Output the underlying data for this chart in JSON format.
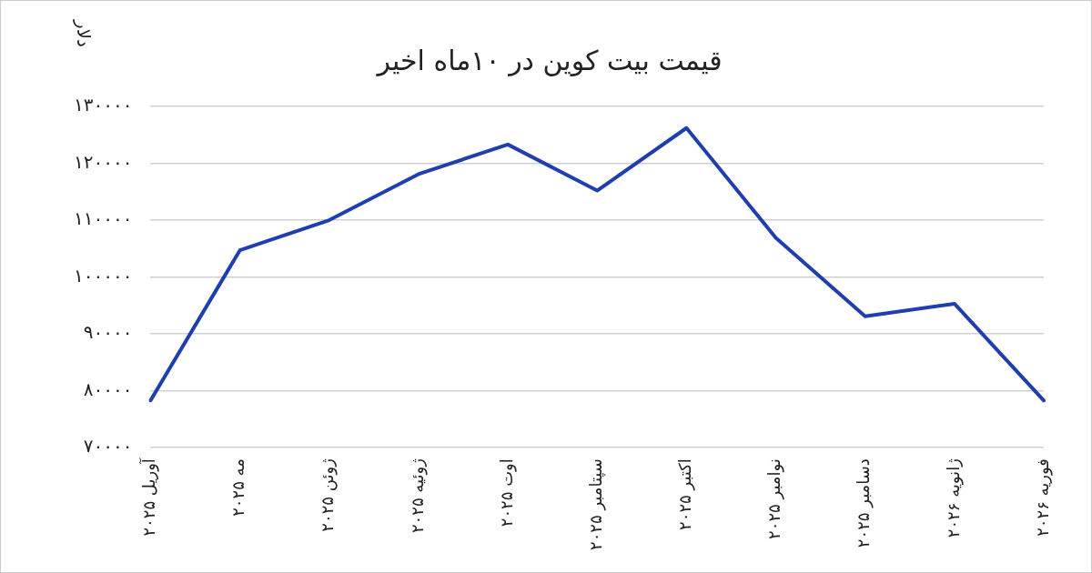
{
  "chart_data": {
    "type": "line",
    "title": "قیمت بیت کوین در ۱۰ماه اخیر",
    "ylabel": "دلار",
    "categories": [
      "آوریل ۲۰۲۵",
      "مه ۲۰۲۵",
      "ژوئن ۲۰۲۵",
      "ژوئیه ۲۰۲۵",
      "اوت ۲۰۲۵",
      "سپتامبر ۲۰۲۵",
      "اکتبر ۲۰۲۵",
      "نوامبر ۲۰۲۵",
      "دسامبر ۲۰۲۵",
      "ژانویه ۲۰۲۶",
      "فوریه ۲۰۲۶"
    ],
    "series": [
      {
        "color": "#1f3fae",
        "values": [
          78300,
          104700,
          110000,
          118100,
          123300,
          115200,
          126200,
          106900,
          93100,
          95300,
          78300
        ]
      }
    ],
    "ylim": [
      70000,
      130000
    ],
    "yticks": [
      {
        "value": 70000,
        "label": "۷۰۰۰۰"
      },
      {
        "value": 80000,
        "label": "۸۰۰۰۰"
      },
      {
        "value": 90000,
        "label": "۹۰۰۰۰"
      },
      {
        "value": 100000,
        "label": "۱۰۰۰۰۰"
      },
      {
        "value": 110000,
        "label": "۱۱۰۰۰۰"
      },
      {
        "value": 120000,
        "label": "۱۲۰۰۰۰"
      },
      {
        "value": 130000,
        "label": "۱۳۰۰۰۰"
      }
    ],
    "grid": "y",
    "legend": false,
    "marker": "none",
    "line_style": "solid"
  }
}
